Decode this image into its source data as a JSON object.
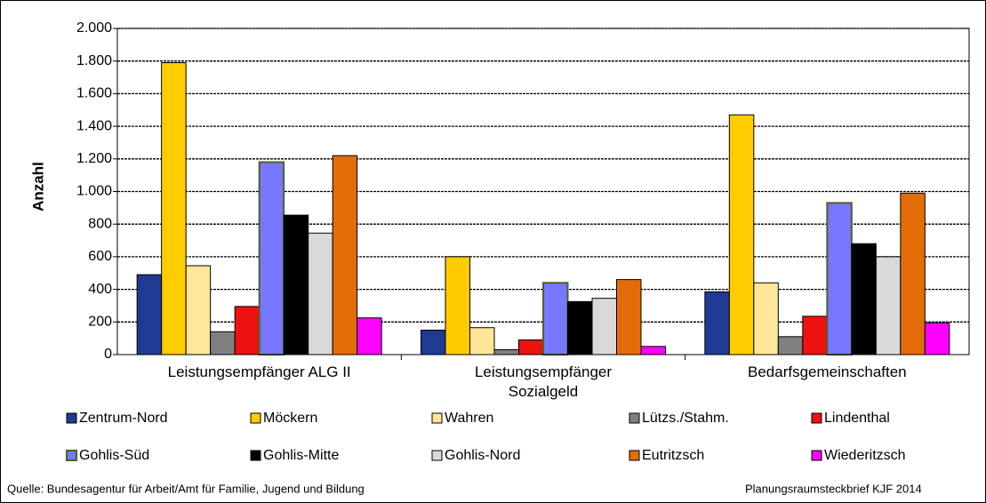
{
  "chart_data": {
    "type": "bar",
    "ylabel": "Anzahl",
    "categories": [
      "Leistungsempfänger ALG II",
      "Leistungsempfänger\nSozialgeld",
      "Bedarfsgemeinschaften"
    ],
    "series": [
      {
        "name": "Zentrum-Nord",
        "color": "#1f3a93",
        "values": [
          490,
          150,
          385
        ]
      },
      {
        "name": "Möckern",
        "color": "#ffcc00",
        "values": [
          1790,
          600,
          1470
        ]
      },
      {
        "name": "Wahren",
        "color": "#ffe699",
        "values": [
          545,
          165,
          440
        ]
      },
      {
        "name": "Lützs./Stahm.",
        "color": "#808080",
        "values": [
          140,
          30,
          110
        ]
      },
      {
        "name": "Lindenthal",
        "color": "#ee1111",
        "values": [
          295,
          90,
          235
        ]
      },
      {
        "name": "Gohlis-Süd",
        "color": "#7777ff",
        "edgecolor": "#4f6228",
        "values": [
          1180,
          440,
          930
        ]
      },
      {
        "name": "Gohlis-Mitte",
        "color": "#000000",
        "values": [
          855,
          325,
          680
        ]
      },
      {
        "name": "Gohlis-Nord",
        "color": "#d9d9d9",
        "values": [
          745,
          345,
          600
        ]
      },
      {
        "name": "Eutritzsch",
        "color": "#e36c09",
        "values": [
          1220,
          460,
          990
        ]
      },
      {
        "name": "Wiederitzsch",
        "color": "#ff00ff",
        "values": [
          225,
          50,
          195
        ]
      }
    ],
    "edgecolor": "#000000",
    "ylim": [
      0,
      2000
    ],
    "yticks": [
      0,
      200,
      400,
      600,
      800,
      {
        "value": 1000,
        "label": "1.000"
      },
      {
        "value": 1200,
        "label": "1.200"
      },
      {
        "value": 1400,
        "label": "1.400"
      },
      {
        "value": 1600,
        "label": "1.600"
      },
      {
        "value": 1800,
        "label": "1.800"
      },
      {
        "value": 2000,
        "label": "2.000"
      }
    ],
    "grid": true,
    "legend": "bottom",
    "source": "Quelle: Bundesagentur für Arbeit/Amt für Familie, Jugend und Bildung",
    "note": "Planungsraumsteckbrief KJF 2014"
  }
}
